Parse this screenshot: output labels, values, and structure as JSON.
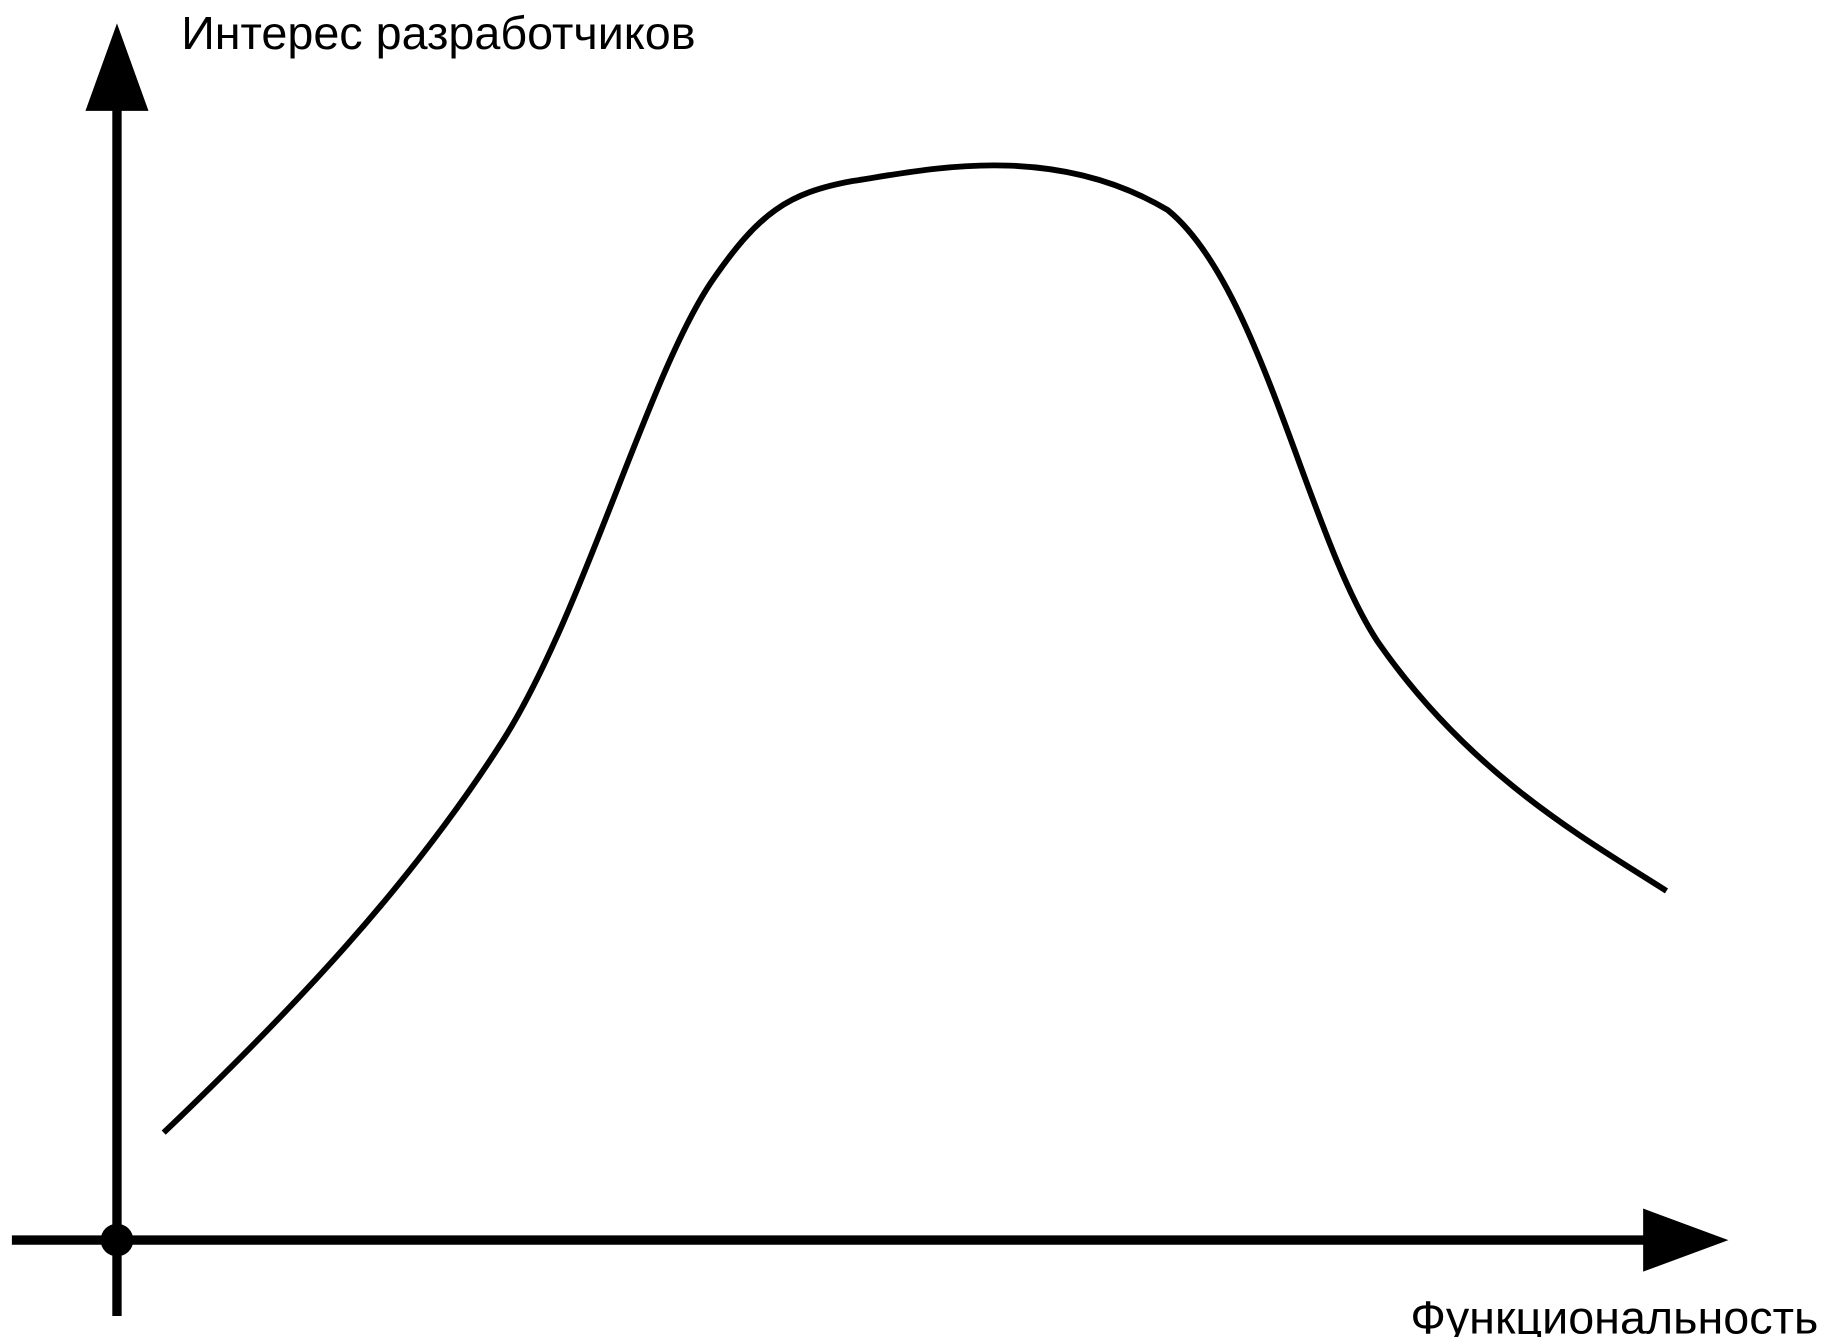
{
  "axes": {
    "y_label": "Интерес разработчиков",
    "x_label": "Функциональность"
  }
}
